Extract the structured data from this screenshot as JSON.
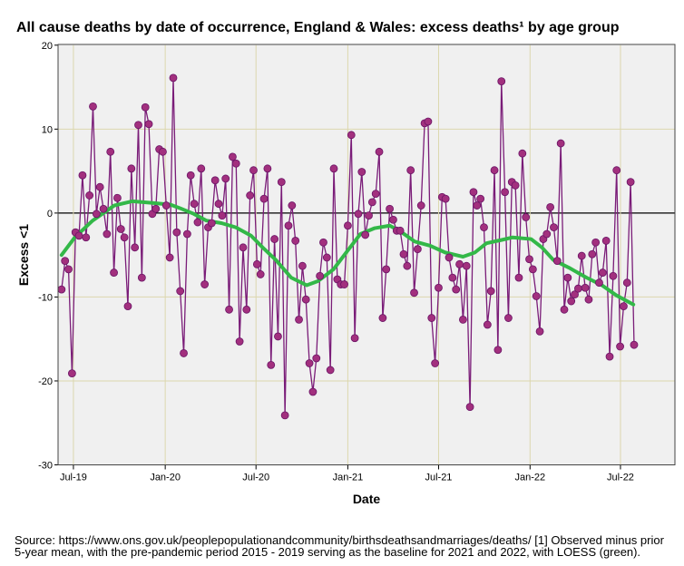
{
  "chart_data": {
    "type": "scatter",
    "title": "All cause deaths by date of occurrence, England & Wales: excess deaths¹ by age group",
    "xlabel": "Date",
    "ylabel": "Excess <1",
    "x_units": "week index (weekly observations)",
    "xlim": [
      -1.0,
      175.7
    ],
    "ylim": [
      -30,
      20
    ],
    "yticks": [
      20,
      10,
      0,
      -10,
      -20,
      -30
    ],
    "xticks": [
      {
        "label": "Jul-19",
        "x": 3.4
      },
      {
        "label": "Jan-20",
        "x": 29.7
      },
      {
        "label": "Jul-20",
        "x": 55.7
      },
      {
        "label": "Jan-21",
        "x": 82.0
      },
      {
        "label": "Jul-21",
        "x": 108.0
      },
      {
        "label": "Jan-22",
        "x": 134.2
      },
      {
        "label": "Jul-22",
        "x": 160.1
      }
    ],
    "grid": true,
    "reference_line_y": 0,
    "series": [
      {
        "name": "Excess <1",
        "style": "line+markers",
        "color": "#a2307e",
        "line_color": "#7a1c78",
        "values": [
          -9.1,
          -5.7,
          -6.7,
          -19.1,
          -2.3,
          -2.7,
          4.5,
          -2.9,
          2.1,
          12.7,
          -0.1,
          3.1,
          0.5,
          -2.5,
          7.3,
          -7.1,
          1.8,
          -1.9,
          -2.9,
          -11.1,
          5.3,
          -4.1,
          10.5,
          -7.7,
          12.6,
          10.6,
          -0.1,
          0.5,
          7.6,
          7.3,
          0.9,
          -5.3,
          16.1,
          -2.3,
          -9.3,
          -16.7,
          -2.5,
          4.5,
          1.1,
          -1.1,
          5.3,
          -8.5,
          -1.7,
          -1.2,
          3.9,
          1.1,
          -0.3,
          4.1,
          -11.5,
          6.7,
          5.9,
          -15.3,
          -4.1,
          -11.5,
          2.1,
          5.1,
          -6.1,
          -7.3,
          1.7,
          5.3,
          -18.1,
          -3.1,
          -14.7,
          3.7,
          -24.1,
          -1.5,
          0.9,
          -3.3,
          -12.7,
          -6.3,
          -10.3,
          -17.9,
          -21.3,
          -17.3,
          -7.5,
          -3.5,
          -5.3,
          -18.7,
          5.3,
          -7.9,
          -8.5,
          -8.5,
          -1.5,
          9.3,
          -14.9,
          -0.1,
          4.9,
          -2.6,
          -0.3,
          1.3,
          2.3,
          7.3,
          -12.5,
          -6.7,
          0.5,
          -0.8,
          -2.1,
          -2.1,
          -4.9,
          -6.3,
          5.1,
          -9.5,
          -4.3,
          0.9,
          10.7,
          10.9,
          -12.5,
          -17.9,
          -8.9,
          1.9,
          1.7,
          -5.3,
          -7.7,
          -9.1,
          -6.1,
          -12.7,
          -6.3,
          -23.1,
          2.5,
          0.9,
          1.7,
          -1.7,
          -13.3,
          -9.3,
          5.1,
          -16.3,
          15.7,
          2.5,
          -12.5,
          3.7,
          3.3,
          -7.7,
          7.1,
          -0.5,
          -5.5,
          -6.7,
          -9.9,
          -14.1,
          -3.1,
          -2.5,
          0.7,
          -1.7,
          -5.7,
          8.3,
          -11.5,
          -7.7,
          -10.5,
          -9.7,
          -9.0,
          -5.1,
          -8.9,
          -10.3,
          -4.9,
          -3.5,
          -8.3,
          -7.1,
          -3.3,
          -17.1,
          -7.5,
          5.1,
          -15.9,
          -11.1,
          -8.3,
          3.7,
          -15.7
        ]
      },
      {
        "name": "LOESS",
        "style": "line",
        "color": "#33b848",
        "points": [
          [
            0,
            -5.0
          ],
          [
            3.8,
            -2.9
          ],
          [
            8.9,
            -0.9
          ],
          [
            15.1,
            0.9
          ],
          [
            20.2,
            1.4
          ],
          [
            26.1,
            1.2
          ],
          [
            31.2,
            1.0
          ],
          [
            33.8,
            0.6
          ],
          [
            37.9,
            -0.1
          ],
          [
            41.5,
            -0.9
          ],
          [
            45.8,
            -1.2
          ],
          [
            49.9,
            -1.7
          ],
          [
            54.3,
            -2.7
          ],
          [
            57.6,
            -4.1
          ],
          [
            61.4,
            -5.6
          ],
          [
            65.8,
            -7.7
          ],
          [
            70.2,
            -8.6
          ],
          [
            73.5,
            -8.1
          ],
          [
            77.9,
            -6.7
          ],
          [
            81.9,
            -4.5
          ],
          [
            85.6,
            -2.5
          ],
          [
            89.7,
            -1.8
          ],
          [
            94.0,
            -1.5
          ],
          [
            97.1,
            -2.2
          ],
          [
            101.2,
            -3.4
          ],
          [
            105.6,
            -3.9
          ],
          [
            109.9,
            -4.7
          ],
          [
            115.0,
            -5.2
          ],
          [
            118.4,
            -4.7
          ],
          [
            121.7,
            -3.6
          ],
          [
            126.1,
            -3.2
          ],
          [
            129.2,
            -2.9
          ],
          [
            134.5,
            -3.1
          ],
          [
            137.6,
            -4.1
          ],
          [
            140.9,
            -5.6
          ],
          [
            145.3,
            -6.5
          ],
          [
            150.4,
            -7.7
          ],
          [
            154.8,
            -8.6
          ],
          [
            158.9,
            -9.8
          ],
          [
            163.8,
            -10.9
          ]
        ]
      }
    ],
    "source_line1": "Source: https://www.ons.gov.uk/peoplepopulationandcommunity/birthsdeathsandmarriages/deaths/  [1] Observed minus prior",
    "source_line2": "5-year mean, with the pre-pandemic period 2015 - 2019 serving as the baseline for 2021 and 2022, with LOESS (green)."
  }
}
